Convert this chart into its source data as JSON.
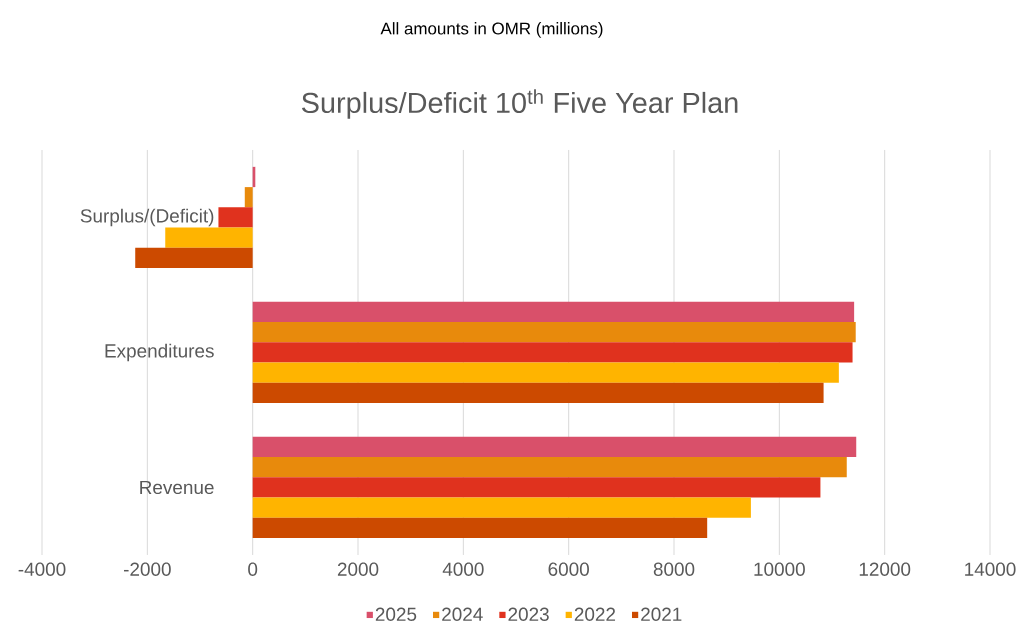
{
  "chart_data": {
    "type": "bar",
    "orientation": "horizontal",
    "title": "Surplus/Deficit 10$^{th}$ Five Year Plan",
    "subtitle": "All amounts in OMR (millions)",
    "categories": [
      "Surplus/(Deficit)",
      "Expenditures",
      "Revenue"
    ],
    "series": [
      {
        "name": "2025",
        "color": "#d9506a",
        "values": [
          50,
          11420,
          11460
        ]
      },
      {
        "name": "2024",
        "color": "#e88a0c",
        "values": [
          -150,
          11450,
          11280
        ]
      },
      {
        "name": "2023",
        "color": "#e0321e",
        "values": [
          -650,
          11390,
          10780
        ]
      },
      {
        "name": "2022",
        "color": "#ffb400",
        "values": [
          -1660,
          11130,
          9460
        ]
      },
      {
        "name": "2021",
        "color": "#cc4a00",
        "values": [
          -2230,
          10840,
          8630
        ]
      }
    ],
    "xlim": [
      -4000,
      14000
    ],
    "xticks": [
      -4000,
      -2000,
      0,
      2000,
      4000,
      6000,
      8000,
      10000,
      12000,
      14000
    ],
    "grid": "x",
    "legend": "bottom"
  }
}
